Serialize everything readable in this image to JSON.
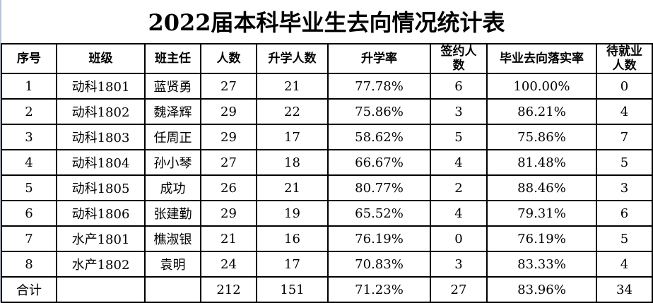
{
  "title": "2022届本科毕业生去向情况统计表",
  "headers": [
    "序号",
    "班级",
    "班主任",
    "人数",
    "升学人数",
    "升学率",
    "签约人数",
    "毕业去向落实率",
    "待就业人数"
  ],
  "rows": [
    [
      "1",
      "动科1801",
      "蓝贤勇",
      "27",
      "21",
      "77.78%",
      "6",
      "100.00%",
      "0"
    ],
    [
      "2",
      "动科1802",
      "魏泽辉",
      "29",
      "22",
      "75.86%",
      "3",
      "86.21%",
      "4"
    ],
    [
      "3",
      "动科1803",
      "任周正",
      "29",
      "17",
      "58.62%",
      "5",
      "75.86%",
      "7"
    ],
    [
      "4",
      "动科1804",
      "孙小琴",
      "27",
      "18",
      "66.67%",
      "4",
      "81.48%",
      "5"
    ],
    [
      "5",
      "动科1805",
      "成功",
      "26",
      "21",
      "80.77%",
      "2",
      "88.46%",
      "3"
    ],
    [
      "6",
      "动科1806",
      "张建勤",
      "29",
      "19",
      "65.52%",
      "4",
      "79.31%",
      "6"
    ],
    [
      "7",
      "水产1801",
      "樵淑银",
      "21",
      "16",
      "76.19%",
      "0",
      "76.19%",
      "5"
    ],
    [
      "8",
      "水产1802",
      "袁明",
      "24",
      "17",
      "70.83%",
      "3",
      "83.33%",
      "4"
    ]
  ],
  "total": [
    "合计",
    "",
    "",
    "212",
    "151",
    "71.23%",
    "27",
    "83.96%",
    "34"
  ]
}
